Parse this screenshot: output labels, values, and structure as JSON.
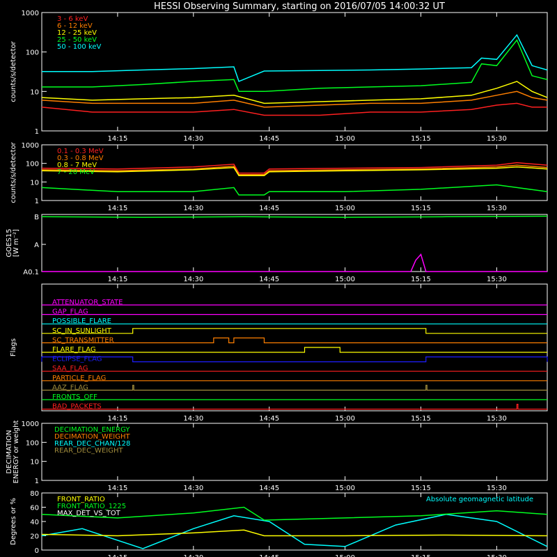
{
  "title": "HESSI Observing Summary, starting on 2016/07/05 14:00:32 UT",
  "colors": {
    "background": "#000000",
    "axis": "#ffffff",
    "red": "#ff2020",
    "orange": "#ff7f00",
    "yellow": "#ffff00",
    "green": "#00ff20",
    "cyan": "#00ffff",
    "magenta": "#ff00ff",
    "blue": "#1e1eff",
    "olive": "#a08c3c",
    "gold": "#e1c81e"
  },
  "chart_data": [
    {
      "id": "counts-low",
      "type": "line",
      "ylabel": "counts/s/detector",
      "yscale": "log",
      "ylim": [
        1,
        1000
      ],
      "y_ticks": [
        "1",
        "10",
        "100",
        "1000"
      ],
      "x_ticks": [
        "14:15",
        "14:30",
        "14:45",
        "15:00",
        "15:15",
        "15:30"
      ],
      "xlim_minutes": [
        "14:00",
        "15:40"
      ],
      "legend": [
        "3 - 6 keV",
        "6 - 12 keV",
        "12 - 25 keV",
        "25 - 50 keV",
        "50 - 100 keV"
      ],
      "series": [
        {
          "name": "3 - 6 keV",
          "color": "#ff2020",
          "x": [
            "14:00",
            "14:10",
            "14:20",
            "14:30",
            "14:38",
            "14:44",
            "14:55",
            "15:05",
            "15:15",
            "15:25",
            "15:30",
            "15:34",
            "15:37",
            "15:40"
          ],
          "y": [
            4,
            3,
            3,
            3,
            3.5,
            2.5,
            2.5,
            3,
            3,
            3.5,
            4.5,
            5,
            4,
            4
          ]
        },
        {
          "name": "6 - 12 keV",
          "color": "#ff7f00",
          "x": [
            "14:00",
            "14:10",
            "14:20",
            "14:30",
            "14:38",
            "14:44",
            "14:55",
            "15:05",
            "15:15",
            "15:25",
            "15:30",
            "15:34",
            "15:37",
            "15:40"
          ],
          "y": [
            6,
            5,
            5,
            5,
            6,
            4,
            4.5,
            5,
            5,
            6,
            8,
            10,
            7,
            6
          ]
        },
        {
          "name": "12 - 25 keV",
          "color": "#ffff00",
          "x": [
            "14:00",
            "14:10",
            "14:20",
            "14:30",
            "14:38",
            "14:44",
            "14:55",
            "15:05",
            "15:15",
            "15:25",
            "15:30",
            "15:34",
            "15:37",
            "15:40"
          ],
          "y": [
            7,
            6,
            6.5,
            7,
            8,
            5,
            5.5,
            6,
            6.5,
            8,
            12,
            18,
            10,
            7
          ]
        },
        {
          "name": "25 - 50 keV",
          "color": "#00ff20",
          "x": [
            "14:00",
            "14:10",
            "14:20",
            "14:30",
            "14:38",
            "14:39",
            "14:44",
            "14:55",
            "15:05",
            "15:15",
            "15:25",
            "15:27",
            "15:30",
            "15:34",
            "15:37",
            "15:40"
          ],
          "y": [
            13,
            13,
            15,
            18,
            20,
            10,
            10,
            12,
            13,
            14,
            17,
            50,
            45,
            200,
            25,
            20
          ]
        },
        {
          "name": "50 - 100 keV",
          "color": "#00ffff",
          "x": [
            "14:00",
            "14:10",
            "14:20",
            "14:30",
            "14:38",
            "14:39",
            "14:44",
            "14:55",
            "15:05",
            "15:15",
            "15:25",
            "15:27",
            "15:30",
            "15:34",
            "15:37",
            "15:40"
          ],
          "y": [
            32,
            32,
            35,
            38,
            42,
            18,
            33,
            34,
            35,
            37,
            40,
            70,
            65,
            270,
            45,
            35
          ]
        }
      ]
    },
    {
      "id": "counts-high",
      "type": "line",
      "ylabel": "counts/s/detector",
      "yscale": "log",
      "ylim": [
        1,
        1000
      ],
      "y_ticks": [
        "1",
        "10",
        "100",
        "1000"
      ],
      "x_ticks": [
        "14:15",
        "14:30",
        "14:45",
        "15:00",
        "15:15",
        "15:30"
      ],
      "xlim_minutes": [
        "14:00",
        "15:40"
      ],
      "legend": [
        "0.1 - 0.3 MeV",
        "0.3 - 0.8 MeV",
        "0.8 - 7 MeV",
        "7 - 20 MeV"
      ],
      "series": [
        {
          "name": "0.1 - 0.3 MeV",
          "color": "#ff2020",
          "x": [
            "14:00",
            "14:15",
            "14:30",
            "14:38",
            "14:39",
            "14:44",
            "14:45",
            "15:00",
            "15:15",
            "15:30",
            "15:34",
            "15:40"
          ],
          "y": [
            55,
            50,
            65,
            90,
            30,
            30,
            50,
            55,
            60,
            80,
            110,
            80
          ]
        },
        {
          "name": "0.3 - 0.8 MeV",
          "color": "#ff7f00",
          "x": [
            "14:00",
            "14:15",
            "14:30",
            "14:38",
            "14:39",
            "14:44",
            "14:45",
            "15:00",
            "15:15",
            "15:30",
            "15:34",
            "15:40"
          ],
          "y": [
            45,
            40,
            50,
            70,
            25,
            25,
            40,
            45,
            50,
            65,
            80,
            60
          ]
        },
        {
          "name": "0.8 - 7 MeV",
          "color": "#ffff00",
          "x": [
            "14:00",
            "14:15",
            "14:30",
            "14:38",
            "14:39",
            "14:44",
            "14:45",
            "15:00",
            "15:15",
            "15:30",
            "15:34",
            "15:40"
          ],
          "y": [
            40,
            35,
            45,
            60,
            22,
            22,
            35,
            40,
            45,
            55,
            65,
            50
          ]
        },
        {
          "name": "7 - 20 MeV",
          "color": "#00ff20",
          "x": [
            "14:00",
            "14:15",
            "14:30",
            "14:38",
            "14:39",
            "14:44",
            "14:45",
            "15:00",
            "15:15",
            "15:30",
            "15:34",
            "15:40"
          ],
          "y": [
            5,
            3,
            3,
            5,
            2,
            2,
            3,
            3,
            4,
            7,
            5,
            3
          ]
        }
      ]
    },
    {
      "id": "goes",
      "type": "line",
      "ylabel": "GOES15",
      "ylabel2": "[W m⁻²]",
      "y_ticks": [
        "A0.1",
        "A",
        "B"
      ],
      "x_ticks": [
        "14:15",
        "14:30",
        "14:45",
        "15:00",
        "15:15",
        "15:30"
      ],
      "xlim_minutes": [
        "14:00",
        "15:40"
      ],
      "series": [
        {
          "name": "GOES low",
          "color": "#00ff20",
          "x": [
            "14:00",
            "14:20",
            "14:40",
            "15:00",
            "15:20",
            "15:40"
          ],
          "y": [
            0.96,
            0.95,
            0.96,
            0.95,
            0.96,
            0.97
          ]
        },
        {
          "name": "GOES high",
          "color": "#ff00ff",
          "x": [
            "14:00",
            "15:13",
            "15:14",
            "15:15",
            "15:16",
            "15:40"
          ],
          "y": [
            0,
            0,
            0.2,
            0.3,
            0,
            0
          ]
        }
      ]
    },
    {
      "id": "flags",
      "type": "line",
      "ylabel": "Flags",
      "x_ticks": [
        "14:15",
        "14:30",
        "14:45",
        "15:00",
        "15:15",
        "15:30"
      ],
      "xlim_minutes": [
        "14:00",
        "15:40"
      ],
      "flags": [
        {
          "name": "ATTENUATOR_STATE",
          "color": "#ff00ff",
          "on": []
        },
        {
          "name": "GAP_FLAG",
          "color": "#ff00ff",
          "on": []
        },
        {
          "name": "POSSIBLE_FLARE",
          "color": "#00ffff",
          "on": []
        },
        {
          "name": "SC_IN_SUNLIGHT",
          "color": "#ffff00",
          "on": [
            [
              "14:18",
              "15:16"
            ]
          ]
        },
        {
          "name": "SC_TRANSMITTER",
          "color": "#ff7f00",
          "on": [
            [
              "14:34",
              "14:37"
            ],
            [
              "14:38",
              "14:44"
            ]
          ]
        },
        {
          "name": "FLARE_FLAG",
          "color": "#ffff00",
          "on": [
            [
              "14:52",
              "14:59"
            ]
          ]
        },
        {
          "name": "ECLIPSE_FLAG",
          "color": "#1e1eff",
          "on": [
            [
              "14:00",
              "14:18"
            ],
            [
              "15:16",
              "15:40"
            ]
          ]
        },
        {
          "name": "SAA_FLAG",
          "color": "#ff2020",
          "on": []
        },
        {
          "name": "PARTICLE_FLAG",
          "color": "#ff7f00",
          "on": []
        },
        {
          "name": "AAZ_FLAG",
          "color": "#a08c3c",
          "on": [
            [
              "14:18",
              "14:18"
            ],
            [
              "15:16",
              "15:16"
            ]
          ]
        },
        {
          "name": "FRONTS_OFF",
          "color": "#00ff20",
          "on": []
        },
        {
          "name": "BAD_PACKETS",
          "color": "#ff2020",
          "on": [
            [
              "15:34",
              "15:34"
            ]
          ]
        }
      ]
    },
    {
      "id": "decimation",
      "type": "line",
      "ylabel": "DECIMATION",
      "ylabel2": "ENERGY or weight",
      "yscale": "log",
      "ylim": [
        1,
        1000
      ],
      "y_ticks": [
        "1",
        "10",
        "100",
        "1000"
      ],
      "x_ticks": [
        "14:15",
        "14:30",
        "14:45",
        "15:00",
        "15:15",
        "15:30"
      ],
      "xlim_minutes": [
        "14:00",
        "15:40"
      ],
      "legend": [
        "DECIMATION_ENERGY",
        "DECIMATION_WEIGHT",
        "REAR_DEC_CHAN/128",
        "REAR_DEC_WEIGHT"
      ],
      "series": [
        {
          "name": "DECIMATION_ENERGY",
          "color": "#00ff20",
          "values": []
        },
        {
          "name": "DECIMATION_WEIGHT",
          "color": "#ff7f00",
          "values": []
        },
        {
          "name": "REAR_DEC_CHAN/128",
          "color": "#00ffff",
          "values": []
        },
        {
          "name": "REAR_DEC_WEIGHT",
          "color": "#a08c3c",
          "values": []
        }
      ]
    },
    {
      "id": "ratios",
      "type": "line",
      "ylabel": "Degrees or %",
      "ylim": [
        0,
        80
      ],
      "y_ticks": [
        "0",
        "20",
        "40",
        "60",
        "80"
      ],
      "x_ticks": [
        "14:15",
        "14:30",
        "14:45",
        "15:00",
        "15:15",
        "15:30"
      ],
      "xlim_minutes": [
        "14:00",
        "15:40"
      ],
      "legend": [
        "FRONT_RATIO",
        "FRONT_RATIO_1225",
        "MAX_DET_VS_TOT"
      ],
      "annotation": "Absolute geomagnetic latitude",
      "series": [
        {
          "name": "Absolute geomagnetic latitude",
          "color": "#00ffff",
          "x": [
            "14:00",
            "14:08",
            "14:20",
            "14:30",
            "14:38",
            "14:45",
            "14:52",
            "15:00",
            "15:10",
            "15:20",
            "15:30",
            "15:40"
          ],
          "y": [
            20,
            30,
            2,
            30,
            48,
            40,
            8,
            5,
            35,
            50,
            40,
            5
          ]
        },
        {
          "name": "FRONT_RATIO",
          "color": "#ffff00",
          "x": [
            "14:00",
            "14:15",
            "14:30",
            "14:40",
            "14:44",
            "15:00",
            "15:20",
            "15:40"
          ],
          "y": [
            22,
            20,
            24,
            28,
            20,
            20,
            21,
            20
          ]
        },
        {
          "name": "FRONT_RATIO_1225",
          "color": "#00ff20",
          "x": [
            "14:00",
            "14:15",
            "14:30",
            "14:40",
            "14:44",
            "15:00",
            "15:15",
            "15:30",
            "15:40"
          ],
          "y": [
            50,
            45,
            52,
            60,
            42,
            45,
            48,
            55,
            50
          ]
        }
      ]
    }
  ]
}
